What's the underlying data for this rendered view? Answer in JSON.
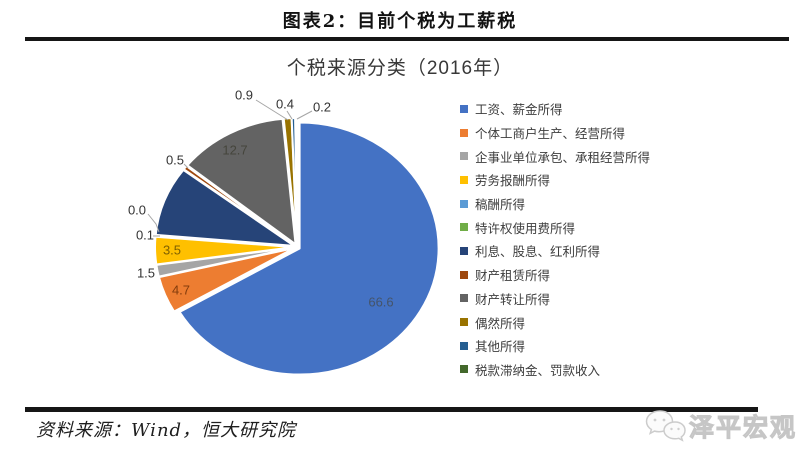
{
  "figure": {
    "title": "图表2：目前个税为工薪税"
  },
  "chart_data": {
    "type": "pie",
    "title": "个税来源分类（2016年）",
    "unit": "percent",
    "legend_position": "right",
    "start_angle_deg": 0,
    "direction": "clockwise",
    "slices": [
      {
        "label": "工资、薪金所得",
        "value": 66.6,
        "data_label": "66.6",
        "color": "#4472C4"
      },
      {
        "label": "个体工商户生产、经营所得",
        "value": 4.7,
        "data_label": "4.7",
        "color": "#ED7D31"
      },
      {
        "label": "企事业单位承包、承租经营所得",
        "value": 1.5,
        "data_label": "1.5",
        "color": "#A5A5A5"
      },
      {
        "label": "劳务报酬所得",
        "value": 3.5,
        "data_label": "3.5",
        "color": "#FFC000"
      },
      {
        "label": "稿酬所得",
        "value": 0.1,
        "data_label": "0.1",
        "color": "#5B9BD5"
      },
      {
        "label": "特许权使用费所得",
        "value": 0.0,
        "data_label": "0.0",
        "color": "#70AD47"
      },
      {
        "label": "利息、股息、红利所得",
        "value": 8.9,
        "data_label": "",
        "color": "#264478"
      },
      {
        "label": "财产租赁所得",
        "value": 0.5,
        "data_label": "0.5",
        "color": "#9E480E"
      },
      {
        "label": "财产转让所得",
        "value": 12.7,
        "data_label": "12.7",
        "color": "#636363"
      },
      {
        "label": "偶然所得",
        "value": 0.9,
        "data_label": "0.9",
        "color": "#997300"
      },
      {
        "label": "其他所得",
        "value": 0.4,
        "data_label": "0.4",
        "color": "#255E91"
      },
      {
        "label": "税款滞纳金、罚款收入",
        "value": 0.2,
        "data_label": "0.2",
        "color": "#43682B"
      }
    ]
  },
  "footer": {
    "source": "资料来源：Wind，恒大研究院",
    "brand": "泽平宏观"
  }
}
